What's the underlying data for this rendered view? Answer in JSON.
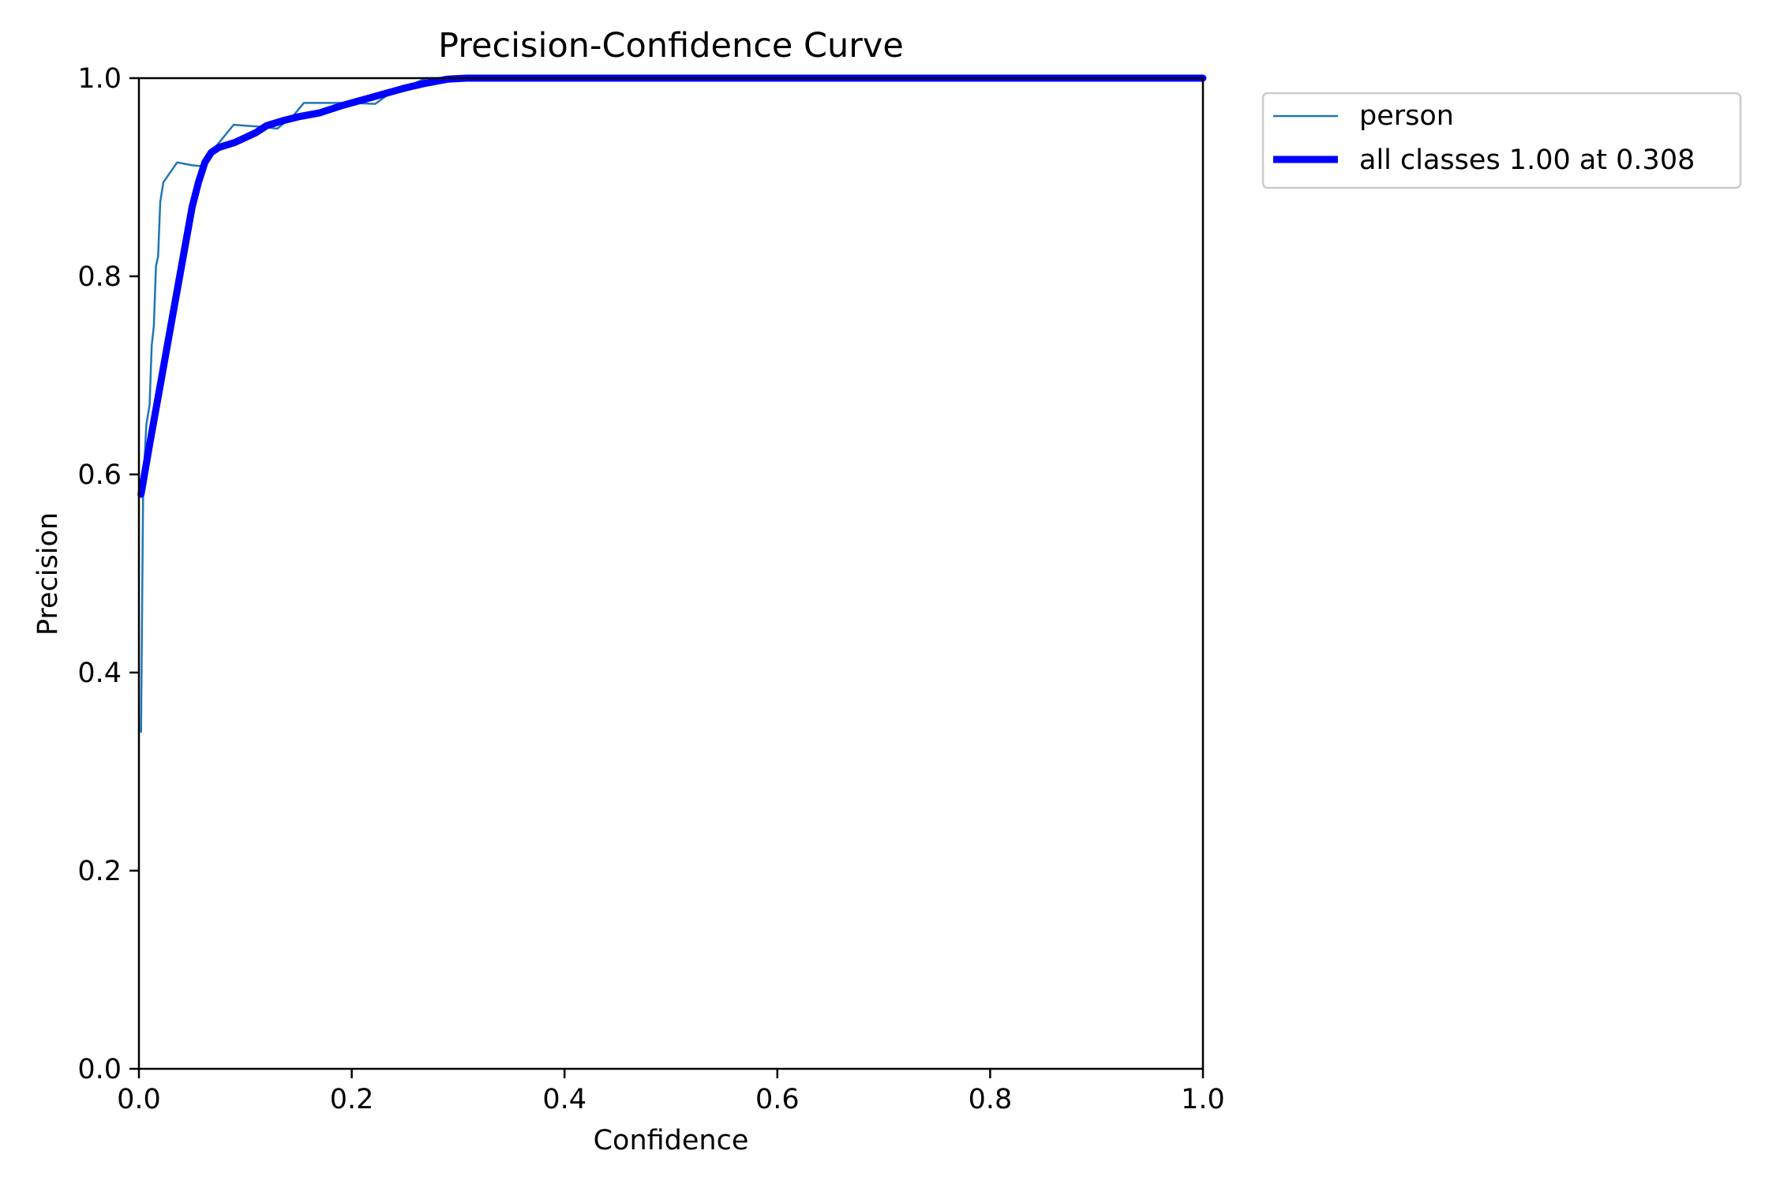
{
  "chart_data": {
    "type": "line",
    "title": "Precision-Confidence Curve",
    "xlabel": "Confidence",
    "ylabel": "Precision",
    "xlim": [
      0,
      1
    ],
    "ylim": [
      0,
      1
    ],
    "xticks": [
      "0.0",
      "0.2",
      "0.4",
      "0.6",
      "0.8",
      "1.0"
    ],
    "yticks": [
      "0.0",
      "0.2",
      "0.4",
      "0.6",
      "0.8",
      "1.0"
    ],
    "grid": false,
    "legend_position": "outside-top-right",
    "series": [
      {
        "name": "person",
        "color": "#1f77b4",
        "line_style": "thin",
        "x": [
          0.002,
          0.004,
          0.007,
          0.01,
          0.012,
          0.014,
          0.016,
          0.018,
          0.02,
          0.023,
          0.036,
          0.05,
          0.06,
          0.07,
          0.089,
          0.1,
          0.115,
          0.13,
          0.145,
          0.155,
          0.175,
          0.2,
          0.222,
          0.24,
          0.255,
          0.27,
          0.3,
          0.4,
          0.6,
          0.8,
          1.0
        ],
        "y": [
          0.34,
          0.59,
          0.65,
          0.67,
          0.73,
          0.75,
          0.81,
          0.82,
          0.875,
          0.895,
          0.915,
          0.912,
          0.911,
          0.928,
          0.953,
          0.952,
          0.951,
          0.949,
          0.962,
          0.975,
          0.975,
          0.975,
          0.974,
          0.988,
          0.993,
          1.0,
          1.0,
          1.0,
          1.0,
          1.0,
          1.0
        ]
      },
      {
        "name": "all classes 1.00 at 0.308",
        "color": "#0000ff",
        "line_style": "thick",
        "x": [
          0.002,
          0.01,
          0.02,
          0.03,
          0.04,
          0.05,
          0.056,
          0.062,
          0.068,
          0.075,
          0.09,
          0.1,
          0.11,
          0.12,
          0.135,
          0.15,
          0.17,
          0.19,
          0.21,
          0.23,
          0.25,
          0.27,
          0.29,
          0.308,
          0.4,
          0.6,
          0.8,
          1.0
        ],
        "y": [
          0.58,
          0.63,
          0.69,
          0.75,
          0.81,
          0.87,
          0.895,
          0.915,
          0.925,
          0.93,
          0.935,
          0.94,
          0.945,
          0.952,
          0.957,
          0.961,
          0.965,
          0.972,
          0.978,
          0.984,
          0.99,
          0.995,
          0.999,
          1.0,
          1.0,
          1.0,
          1.0,
          1.0
        ]
      }
    ]
  }
}
